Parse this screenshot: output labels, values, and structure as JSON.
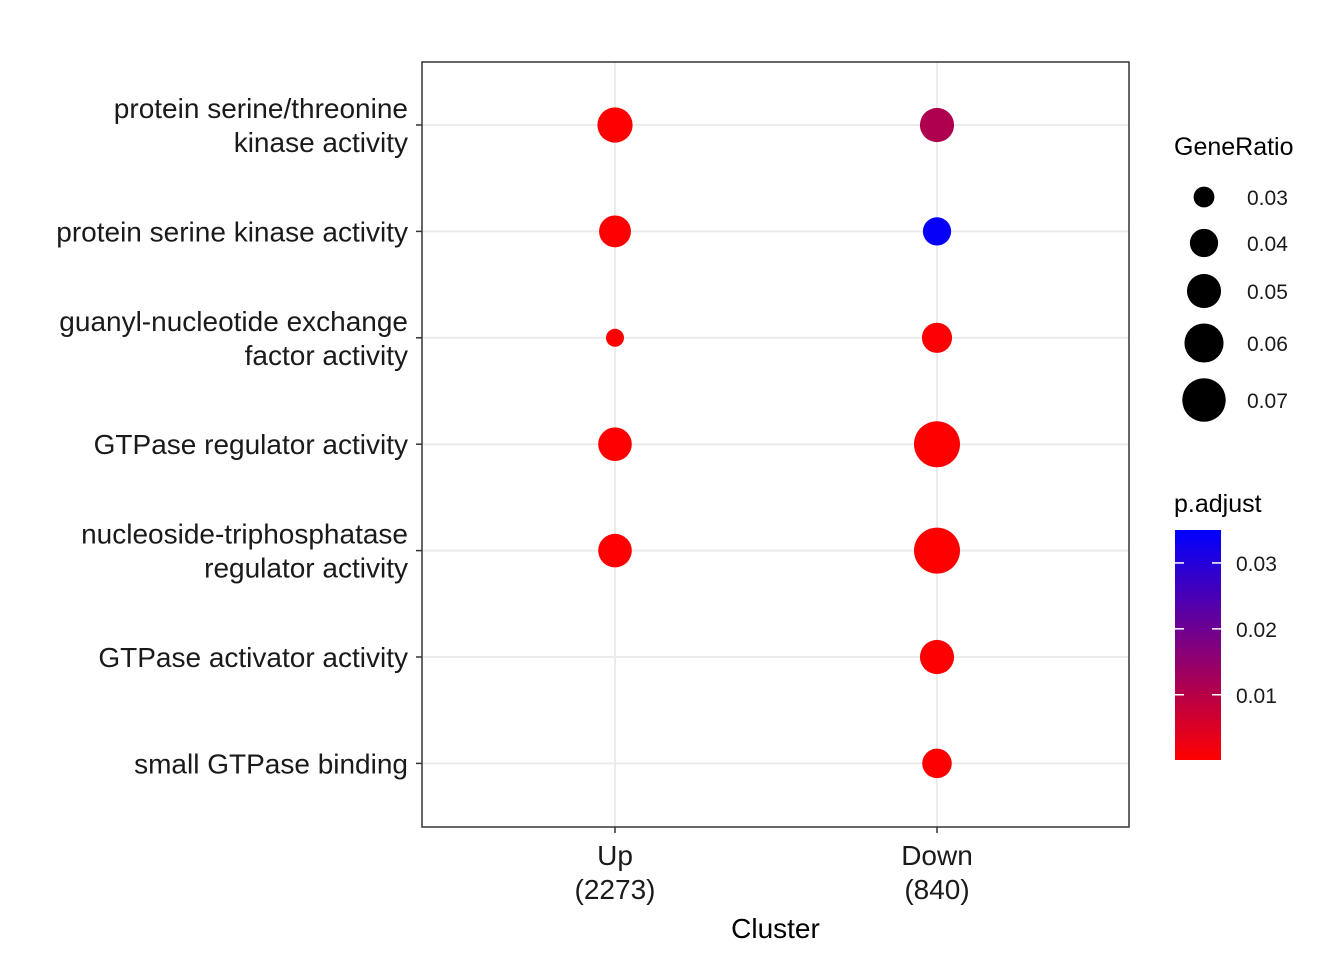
{
  "chart_data": {
    "type": "scatter",
    "title": "",
    "xlabel": "Cluster",
    "ylabel": "",
    "grid": true,
    "clusters": [
      {
        "name": "Up",
        "count": "(2273)"
      },
      {
        "name": "Down",
        "count": "(840)"
      }
    ],
    "categories": [
      [
        "protein serine/threonine",
        "kinase activity"
      ],
      [
        "protein serine kinase activity"
      ],
      [
        "guanyl-nucleotide exchange",
        "factor activity"
      ],
      [
        "GTPase regulator activity"
      ],
      [
        "nucleoside-triphosphatase",
        "regulator activity"
      ],
      [
        "GTPase activator activity"
      ],
      [
        "small GTPase binding"
      ]
    ],
    "points": [
      {
        "cluster": 0,
        "category": 0,
        "gene_ratio": 0.052,
        "p_adjust": 0.0003
      },
      {
        "cluster": 0,
        "category": 1,
        "gene_ratio": 0.046,
        "p_adjust": 0.0003
      },
      {
        "cluster": 0,
        "category": 2,
        "gene_ratio": 0.027,
        "p_adjust": 0.0003
      },
      {
        "cluster": 0,
        "category": 3,
        "gene_ratio": 0.049,
        "p_adjust": 0.0003
      },
      {
        "cluster": 0,
        "category": 4,
        "gene_ratio": 0.049,
        "p_adjust": 0.0003
      },
      {
        "cluster": 1,
        "category": 0,
        "gene_ratio": 0.05,
        "p_adjust": 0.011
      },
      {
        "cluster": 1,
        "category": 1,
        "gene_ratio": 0.04,
        "p_adjust": 0.034
      },
      {
        "cluster": 1,
        "category": 2,
        "gene_ratio": 0.043,
        "p_adjust": 0.0005
      },
      {
        "cluster": 1,
        "category": 3,
        "gene_ratio": 0.076,
        "p_adjust": 0.0001
      },
      {
        "cluster": 1,
        "category": 4,
        "gene_ratio": 0.076,
        "p_adjust": 0.0001
      },
      {
        "cluster": 1,
        "category": 5,
        "gene_ratio": 0.05,
        "p_adjust": 0.0004
      },
      {
        "cluster": 1,
        "category": 6,
        "gene_ratio": 0.042,
        "p_adjust": 0.0004
      }
    ],
    "size_legend": {
      "title": "GeneRatio",
      "breaks": [
        0.03,
        0.04,
        0.05,
        0.06,
        0.07
      ],
      "labels": [
        "0.03",
        "0.04",
        "0.05",
        "0.06",
        "0.07"
      ]
    },
    "color_legend": {
      "title": "p.adjust",
      "range": [
        0.0001,
        0.035
      ],
      "breaks": [
        0.01,
        0.02,
        0.03
      ],
      "labels": [
        "0.01",
        "0.02",
        "0.03"
      ],
      "low_color": "#ff0000",
      "high_color": "#0000ff"
    },
    "legend_position": "right"
  }
}
